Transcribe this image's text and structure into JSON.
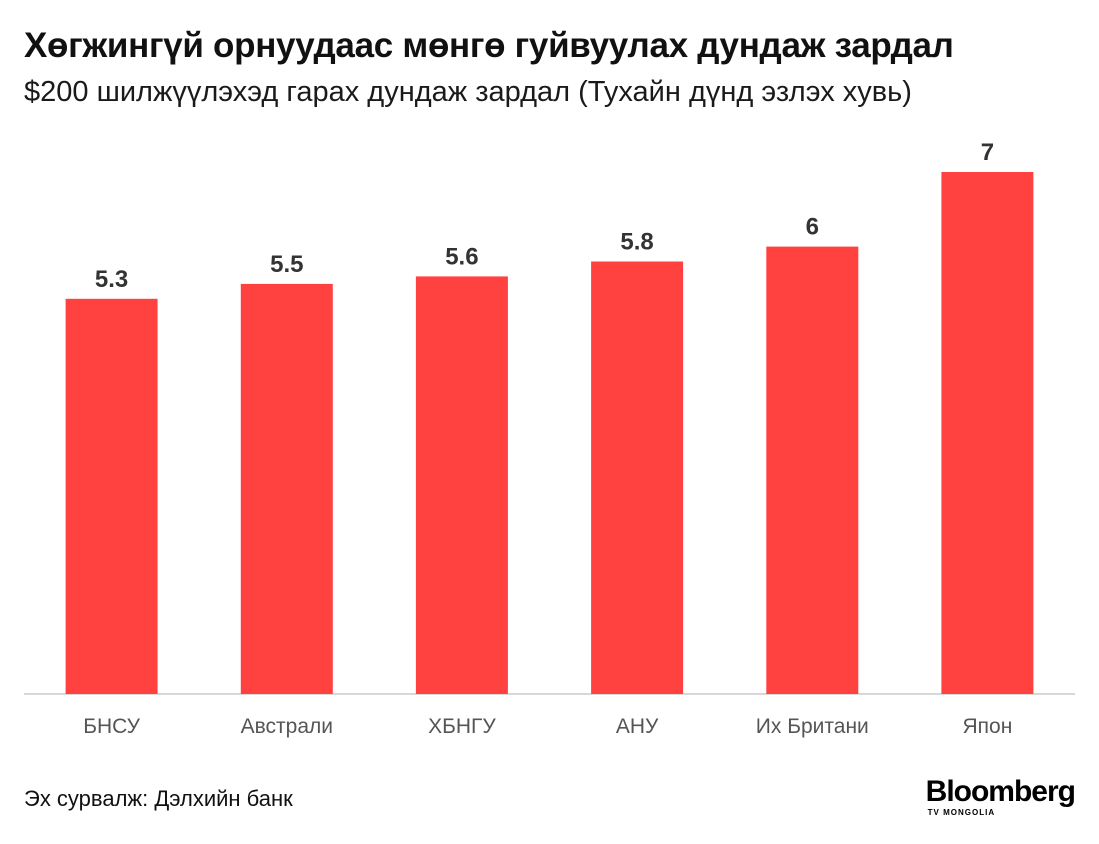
{
  "header": {
    "title": "Хөгжингүй орнуудаас мөнгө гуйвуулах дундаж зардал",
    "subtitle": "$200 шилжүүлэхэд гарах дундаж зардал (Тухайн дүнд эзлэх хувь)"
  },
  "footer": {
    "source": "Эх сурвалж: Дэлхийн банк",
    "logo_main": "Bloomberg",
    "logo_sub": "TV MONGOLIA"
  },
  "colors": {
    "bar": "#ff4240",
    "axis": "#cccccc",
    "label": "#555555",
    "value": "#333333"
  },
  "chart_data": {
    "type": "bar",
    "title": "Хөгжингүй орнуудаас мөнгө гуйвуулах дундаж зардал",
    "subtitle": "$200 шилжүүлэхэд гарах дундаж зардал (Тухайн дүнд эзлэх хувь)",
    "categories": [
      "БНСУ",
      "Австрали",
      "ХБНГУ",
      "АНУ",
      "Их Британи",
      "Япон"
    ],
    "values": [
      5.3,
      5.5,
      5.6,
      5.8,
      6,
      7
    ],
    "value_labels": [
      "5.3",
      "5.5",
      "5.6",
      "5.8",
      "6",
      "7"
    ],
    "xlabel": "",
    "ylabel": "",
    "ylim": [
      0,
      7
    ],
    "grid": false,
    "legend": "none"
  }
}
